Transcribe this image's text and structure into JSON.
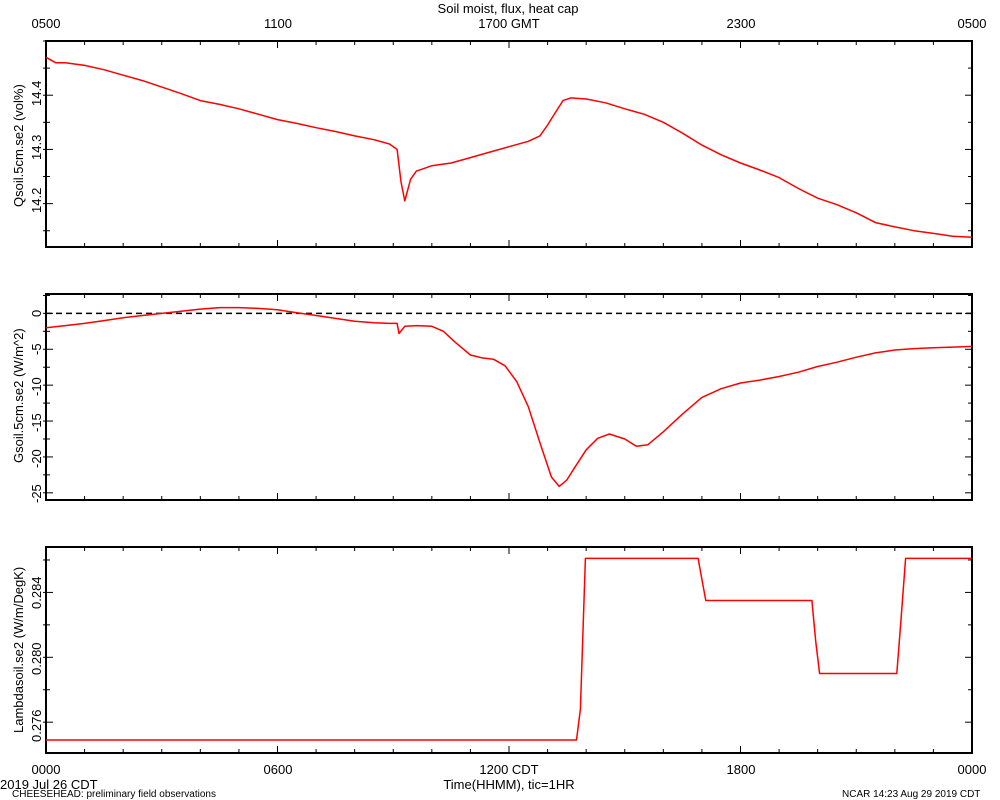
{
  "title": "Soil moist, flux, heat cap",
  "top_axis_ticks": [
    "0500",
    "1100",
    "1700 GMT",
    "2300",
    "0500"
  ],
  "bottom_axis_ticks": [
    "0000",
    "0600",
    "1200 CDT",
    "1800",
    "0000"
  ],
  "xlabel": "Time(HHMM), tic=1HR",
  "date_label": "2019 Jul 26 CDT",
  "footer_left": "CHEESEHEAD: preliminary field observations",
  "footer_right": "NCAR 14:23 Aug 29 2019 CDT",
  "line_color": "#ff0000",
  "chart_data": [
    {
      "type": "line",
      "ylabel": "Qsoil.5cm.se2 (vol%)",
      "yticks": [
        "14.2",
        "14.3",
        "14.4"
      ],
      "ylim": [
        14.12,
        14.5
      ],
      "xlim": [
        0,
        24
      ],
      "x_unit": "hours CDT",
      "series": [
        {
          "x": [
            0.0,
            0.25,
            0.5,
            1.0,
            1.5,
            2.0,
            2.5,
            3.0,
            3.5,
            4.0,
            4.5,
            5.0,
            5.5,
            6.0,
            6.5,
            7.0,
            7.5,
            8.0,
            8.5,
            8.9,
            9.1,
            9.2,
            9.3,
            9.45,
            9.6,
            9.8,
            10.0,
            10.5,
            11.0,
            11.5,
            12.0,
            12.5,
            12.8,
            13.0,
            13.2,
            13.4,
            13.6,
            14.0,
            14.5,
            15.0,
            15.5,
            16.0,
            16.5,
            17.0,
            17.5,
            18.0,
            18.5,
            19.0,
            19.5,
            20.0,
            20.5,
            21.0,
            21.5,
            22.0,
            22.5,
            23.0,
            23.5,
            24.0
          ],
          "y": [
            14.47,
            14.46,
            14.46,
            14.455,
            14.447,
            14.437,
            14.427,
            14.415,
            14.403,
            14.39,
            14.383,
            14.375,
            14.365,
            14.355,
            14.348,
            14.34,
            14.333,
            14.325,
            14.318,
            14.31,
            14.3,
            14.24,
            14.205,
            14.245,
            14.26,
            14.265,
            14.27,
            14.275,
            14.285,
            14.295,
            14.305,
            14.315,
            14.325,
            14.345,
            14.368,
            14.39,
            14.395,
            14.393,
            14.386,
            14.375,
            14.365,
            14.35,
            14.33,
            14.308,
            14.29,
            14.275,
            14.262,
            14.248,
            14.228,
            14.21,
            14.198,
            14.183,
            14.165,
            14.157,
            14.15,
            14.145,
            14.14,
            14.138
          ]
        }
      ]
    },
    {
      "type": "line",
      "ylabel": "Gsoil.5cm.se2 (W/m^2)",
      "yticks": [
        "0",
        "-5",
        "-10",
        "-15",
        "-20",
        "-25"
      ],
      "ylim": [
        -26.0,
        2.7
      ],
      "xlim": [
        0,
        24
      ],
      "x_unit": "hours CDT",
      "reference_line": {
        "y": 0,
        "style": "dashed"
      },
      "series": [
        {
          "x": [
            0.0,
            0.5,
            1.0,
            1.5,
            2.0,
            2.5,
            3.0,
            3.5,
            4.0,
            4.5,
            5.0,
            5.5,
            6.0,
            6.5,
            7.0,
            7.5,
            8.0,
            8.5,
            8.9,
            9.1,
            9.15,
            9.3,
            9.6,
            10.0,
            10.3,
            10.6,
            11.0,
            11.3,
            11.6,
            11.9,
            12.2,
            12.5,
            12.8,
            13.1,
            13.3,
            13.5,
            13.7,
            14.0,
            14.3,
            14.6,
            15.0,
            15.3,
            15.6,
            16.0,
            16.5,
            17.0,
            17.5,
            18.0,
            18.5,
            19.0,
            19.5,
            20.0,
            20.5,
            21.0,
            21.5,
            22.0,
            22.5,
            23.0,
            23.5,
            24.0
          ],
          "y": [
            -2.0,
            -1.7,
            -1.4,
            -1.0,
            -0.6,
            -0.3,
            0.0,
            0.3,
            0.6,
            0.8,
            0.8,
            0.7,
            0.5,
            0.1,
            -0.3,
            -0.7,
            -1.1,
            -1.3,
            -1.4,
            -1.4,
            -2.8,
            -1.8,
            -1.7,
            -1.8,
            -2.5,
            -4.0,
            -5.8,
            -6.2,
            -6.4,
            -7.3,
            -9.5,
            -13.0,
            -18.0,
            -22.8,
            -24.1,
            -23.2,
            -21.5,
            -19.0,
            -17.4,
            -16.8,
            -17.5,
            -18.5,
            -18.3,
            -16.5,
            -14.0,
            -11.7,
            -10.5,
            -9.7,
            -9.3,
            -8.8,
            -8.2,
            -7.4,
            -6.8,
            -6.1,
            -5.5,
            -5.1,
            -4.9,
            -4.8,
            -4.7,
            -4.6
          ]
        }
      ]
    },
    {
      "type": "line",
      "ylabel": "Lambdasoil.se2 (W/m/DegK)",
      "yticks": [
        "0.276",
        "0.280",
        "0.284"
      ],
      "ylim": [
        0.2741,
        0.2868
      ],
      "xlim": [
        0,
        24
      ],
      "x_unit": "hours CDT",
      "series": [
        {
          "x": [
            0.0,
            13.75,
            13.85,
            13.98,
            16.9,
            17.0,
            17.1,
            19.85,
            19.95,
            20.05,
            22.05,
            22.15,
            22.28,
            24.0
          ],
          "y": [
            0.2749,
            0.2749,
            0.2768,
            0.2861,
            0.2861,
            0.2848,
            0.2835,
            0.2835,
            0.281,
            0.279,
            0.279,
            0.282,
            0.2861,
            0.2861
          ]
        }
      ]
    }
  ]
}
